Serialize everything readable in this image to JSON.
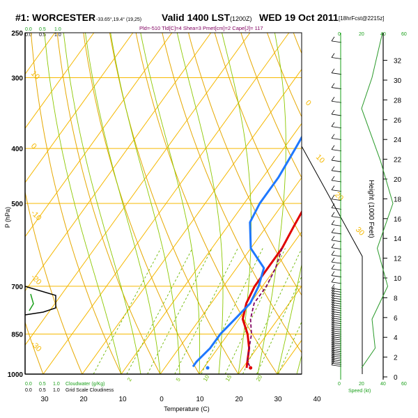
{
  "header": {
    "station": "#1: WORCESTER",
    "coords": "-33.65°,19.4° (19,25)",
    "valid": "Valid 1400 LST",
    "utc": "(1200Z)",
    "date": "WED 19 Oct 2011",
    "forecast": "[18hrFcst@2215z]",
    "indices": "Pld=-510 Tld[C]=4 Shea=3 Pmet[cm]=2 Cape[J]= 117"
  },
  "colors": {
    "frame": "#000000",
    "isobar": "#f5b800",
    "isotherm": "#f5b800",
    "dry_adiabat": "#e6a800",
    "moist_adiabat": "#8cc800",
    "mixing_ratio": "#6cb800",
    "temperature": "#e00000",
    "dewpoint": "#1e78ff",
    "parcel": "#800060",
    "cloud": "#000000",
    "height_curve": "#2a9a2a",
    "green_text": "#1aa01a",
    "title": "#000000",
    "indices": "#800060"
  },
  "labels": {
    "pressure_axis": "P (hPa)",
    "temperature_axis": "Temperature (C)",
    "height_axis": "Height (1000 Feet)",
    "speed_axis": "Speed (kt)",
    "cloudwater_legend": "Cloudwater (g/Kg)",
    "gridscale_legend": "Grid Scale Cloudiness",
    "cloud_top_ticks": [
      "0.0",
      "0.5",
      "1.0"
    ],
    "cloud_top_ticks_green": [
      "0.0",
      "0.5",
      "1.0"
    ],
    "cloud_bottom_ticks_green": [
      "0.0",
      "0.5",
      "1.0"
    ],
    "cloud_bottom_ticks": [
      "0.0",
      "0.5",
      "1.0"
    ],
    "speed_top_ticks": [
      "0",
      "20",
      "40",
      "60"
    ],
    "speed_bottom_ticks": [
      "0",
      "20",
      "40",
      "60"
    ]
  },
  "chart_data": {
    "type": "line",
    "title": "#1: WORCESTER  Valid 1400 LST WED 19 Oct 2011",
    "xlabel": "Temperature (C)",
    "ylabel": "P (hPa)",
    "pressure_ticks": [
      250,
      300,
      400,
      500,
      700,
      850,
      1000
    ],
    "temperature_ticks": [
      30,
      20,
      10,
      0,
      10,
      20,
      30,
      40
    ],
    "height_ticks_kft": [
      0,
      2,
      4,
      6,
      8,
      10,
      12,
      14,
      16,
      18,
      20,
      22,
      24,
      26,
      28,
      30,
      32
    ],
    "isotherm_labels": [
      "10",
      "0",
      "-10",
      "-20",
      "-30",
      "0",
      "10",
      "20",
      "30"
    ],
    "mixing_ratio_labels": [
      "2",
      "5",
      "10",
      "15",
      "20"
    ],
    "series": [
      {
        "name": "temperature",
        "points": [
          [
            -1,
            258
          ],
          [
            -3,
            280
          ],
          [
            -4,
            300
          ],
          [
            -3,
            330
          ],
          [
            -2,
            360
          ],
          [
            0,
            400
          ],
          [
            4,
            450
          ],
          [
            6,
            500
          ],
          [
            7,
            550
          ],
          [
            8,
            600
          ],
          [
            8,
            650
          ],
          [
            8,
            700
          ],
          [
            9,
            750
          ],
          [
            11,
            800
          ],
          [
            15,
            850
          ],
          [
            18,
            900
          ],
          [
            20,
            950
          ],
          [
            21,
            975
          ]
        ]
      },
      {
        "name": "dewpoint",
        "points": [
          [
            -13,
            258
          ],
          [
            -11,
            285
          ],
          [
            -9,
            320
          ],
          [
            -8,
            360
          ],
          [
            -7,
            400
          ],
          [
            -6,
            450
          ],
          [
            -6,
            500
          ],
          [
            -5,
            540
          ],
          [
            0,
            600
          ],
          [
            7,
            650
          ],
          [
            9,
            700
          ],
          [
            10,
            750
          ],
          [
            9,
            800
          ],
          [
            8,
            850
          ],
          [
            8,
            900
          ],
          [
            7,
            950
          ],
          [
            7,
            970
          ]
        ]
      },
      {
        "name": "parcel",
        "points": [
          [
            8,
            600
          ],
          [
            10,
            650
          ],
          [
            11,
            700
          ],
          [
            11,
            750
          ],
          [
            13,
            800
          ],
          [
            16,
            850
          ],
          [
            18,
            900
          ],
          [
            20,
            950
          ],
          [
            22,
            975
          ]
        ]
      }
    ],
    "surface_dewpoint_dot": [
      11,
      975
    ],
    "surface_temperature_dot": [
      22,
      975
    ],
    "height_profile": [
      [
        40,
        250
      ],
      [
        30,
        300
      ],
      [
        20,
        340
      ],
      [
        38,
        420
      ],
      [
        50,
        500
      ],
      [
        35,
        600
      ],
      [
        45,
        700
      ],
      [
        30,
        800
      ],
      [
        33,
        900
      ],
      [
        20,
        975
      ]
    ],
    "winds_kt": [
      [
        250,
        10
      ],
      [
        300,
        10
      ],
      [
        400,
        15
      ],
      [
        500,
        15
      ],
      [
        600,
        10
      ],
      [
        700,
        10
      ],
      [
        800,
        15
      ],
      [
        850,
        20
      ],
      [
        900,
        20
      ],
      [
        950,
        20
      ],
      [
        975,
        20
      ]
    ]
  }
}
